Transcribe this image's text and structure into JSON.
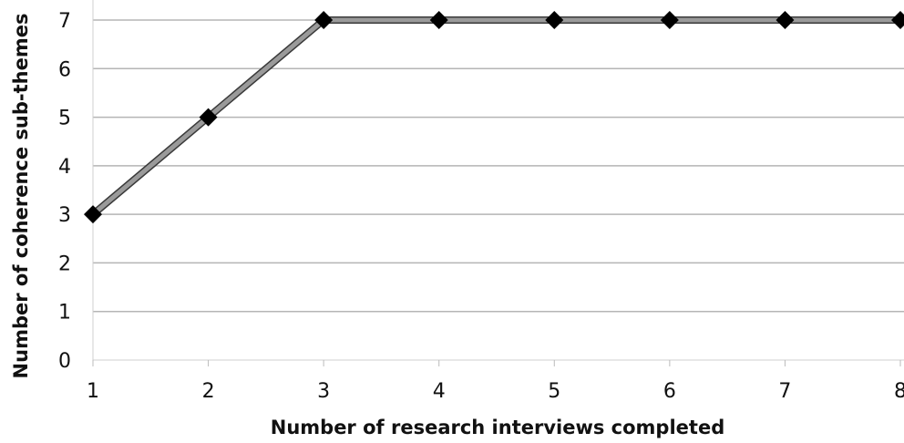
{
  "chart_data": {
    "type": "line",
    "title": "",
    "xlabel": "Number of research interviews completed",
    "ylabel": "Number of coherence sub-themes",
    "x": [
      1,
      2,
      3,
      4,
      5,
      6,
      7,
      8
    ],
    "series": [
      {
        "values": [
          3,
          5,
          7,
          7,
          7,
          7,
          7,
          7
        ]
      }
    ],
    "ylim": [
      0,
      7
    ],
    "xlim": [
      1,
      8
    ],
    "yticks": [
      0,
      1,
      2,
      3,
      4,
      5,
      6,
      7
    ],
    "xticks": [
      1,
      2,
      3,
      4,
      5,
      6,
      7,
      8
    ],
    "grid": true,
    "legend": "none",
    "colors": {
      "line": "#9a9a9a",
      "marker": "#000000",
      "grid": "#b5b5b5"
    },
    "marker": "diamond"
  }
}
